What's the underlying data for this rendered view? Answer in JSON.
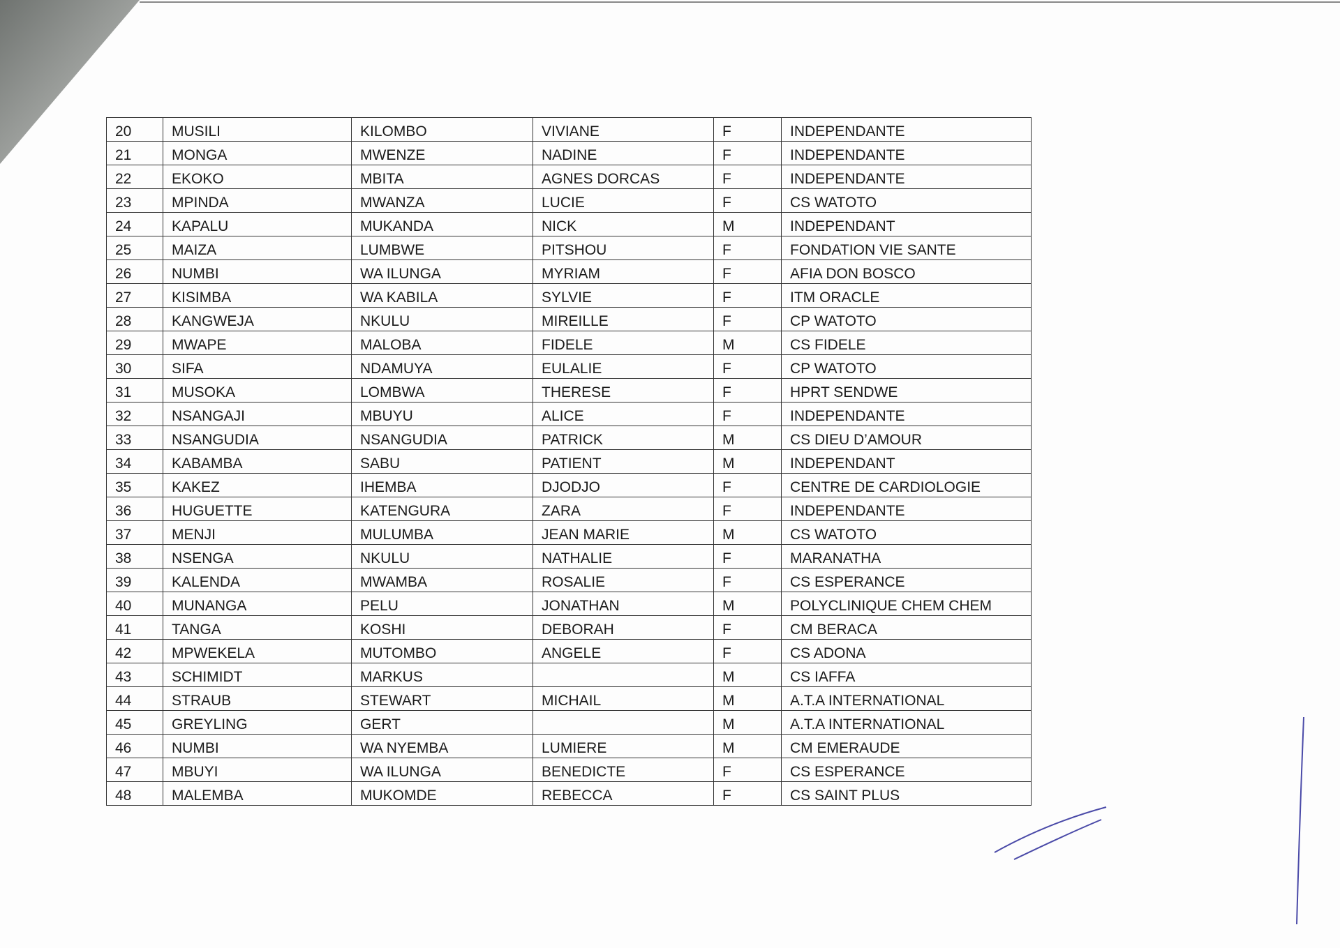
{
  "table": {
    "rows": [
      [
        "20",
        "MUSILI",
        "KILOMBO",
        "VIVIANE",
        "F",
        "INDEPENDANTE"
      ],
      [
        "21",
        "MONGA",
        "MWENZE",
        "NADINE",
        "F",
        "INDEPENDANTE"
      ],
      [
        "22",
        "EKOKO",
        "MBITA",
        "AGNES DORCAS",
        "F",
        "INDEPENDANTE"
      ],
      [
        "23",
        "MPINDA",
        "MWANZA",
        "LUCIE",
        "F",
        "CS WATOTO"
      ],
      [
        "24",
        "KAPALU",
        "MUKANDA",
        "NICK",
        "M",
        "INDEPENDANT"
      ],
      [
        "25",
        "MAIZA",
        "LUMBWE",
        "PITSHOU",
        "F",
        "FONDATION VIE SANTE"
      ],
      [
        "26",
        "NUMBI",
        "WA ILUNGA",
        "MYRIAM",
        "F",
        "AFIA DON BOSCO"
      ],
      [
        "27",
        "KISIMBA",
        "WA KABILA",
        "SYLVIE",
        "F",
        "ITM ORACLE"
      ],
      [
        "28",
        "KANGWEJA",
        "NKULU",
        "MIREILLE",
        "F",
        "CP WATOTO"
      ],
      [
        "29",
        "MWAPE",
        "MALOBA",
        "FIDELE",
        "M",
        "CS FIDELE"
      ],
      [
        "30",
        "SIFA",
        "NDAMUYA",
        "EULALIE",
        "F",
        "CP WATOTO"
      ],
      [
        "31",
        "MUSOKA",
        "LOMBWA",
        "THERESE",
        "F",
        "HPRT SENDWE"
      ],
      [
        "32",
        "NSANGAJI",
        "MBUYU",
        "ALICE",
        "F",
        "INDEPENDANTE"
      ],
      [
        "33",
        "NSANGUDIA",
        "NSANGUDIA",
        "PATRICK",
        "M",
        "CS DIEU D’AMOUR"
      ],
      [
        "34",
        "KABAMBA",
        "SABU",
        "PATIENT",
        "M",
        "INDEPENDANT"
      ],
      [
        "35",
        "KAKEZ",
        "IHEMBA",
        "DJODJO",
        "F",
        "CENTRE DE CARDIOLOGIE"
      ],
      [
        "36",
        "HUGUETTE",
        "KATENGURA",
        "ZARA",
        "F",
        "INDEPENDANTE"
      ],
      [
        "37",
        "MENJI",
        "MULUMBA",
        "JEAN MARIE",
        "M",
        "CS WATOTO"
      ],
      [
        "38",
        "NSENGA",
        "NKULU",
        "NATHALIE",
        "F",
        "MARANATHA"
      ],
      [
        "39",
        "KALENDA",
        "MWAMBA",
        "ROSALIE",
        "F",
        "CS ESPERANCE"
      ],
      [
        "40",
        "MUNANGA",
        "PELU",
        "JONATHAN",
        "M",
        "POLYCLINIQUE CHEM CHEM"
      ],
      [
        "41",
        "TANGA",
        "KOSHI",
        "DEBORAH",
        "F",
        "CM BERACA"
      ],
      [
        "42",
        "MPWEKELA",
        "MUTOMBO",
        "ANGELE",
        "F",
        "CS ADONA"
      ],
      [
        "43",
        "SCHIMIDT",
        "MARKUS",
        null,
        "M",
        "CS IAFFA"
      ],
      [
        "44",
        "STRAUB",
        "STEWART",
        "MICHAIL",
        "M",
        "A.T.A INTERNATIONAL"
      ],
      [
        "45",
        "GREYLING",
        "GERT",
        null,
        "M",
        "A.T.A INTERNATIONAL"
      ],
      [
        "46",
        "NUMBI",
        "WA NYEMBA",
        "LUMIERE",
        "M",
        "CM EMERAUDE"
      ],
      [
        "47",
        "MBUYI",
        "WA ILUNGA",
        "BENEDICTE",
        "F",
        "CS ESPERANCE"
      ],
      [
        "48",
        "MALEMBA",
        "MUKOMDE",
        "REBECCA",
        "F",
        "CS SAINT PLUS"
      ]
    ]
  }
}
